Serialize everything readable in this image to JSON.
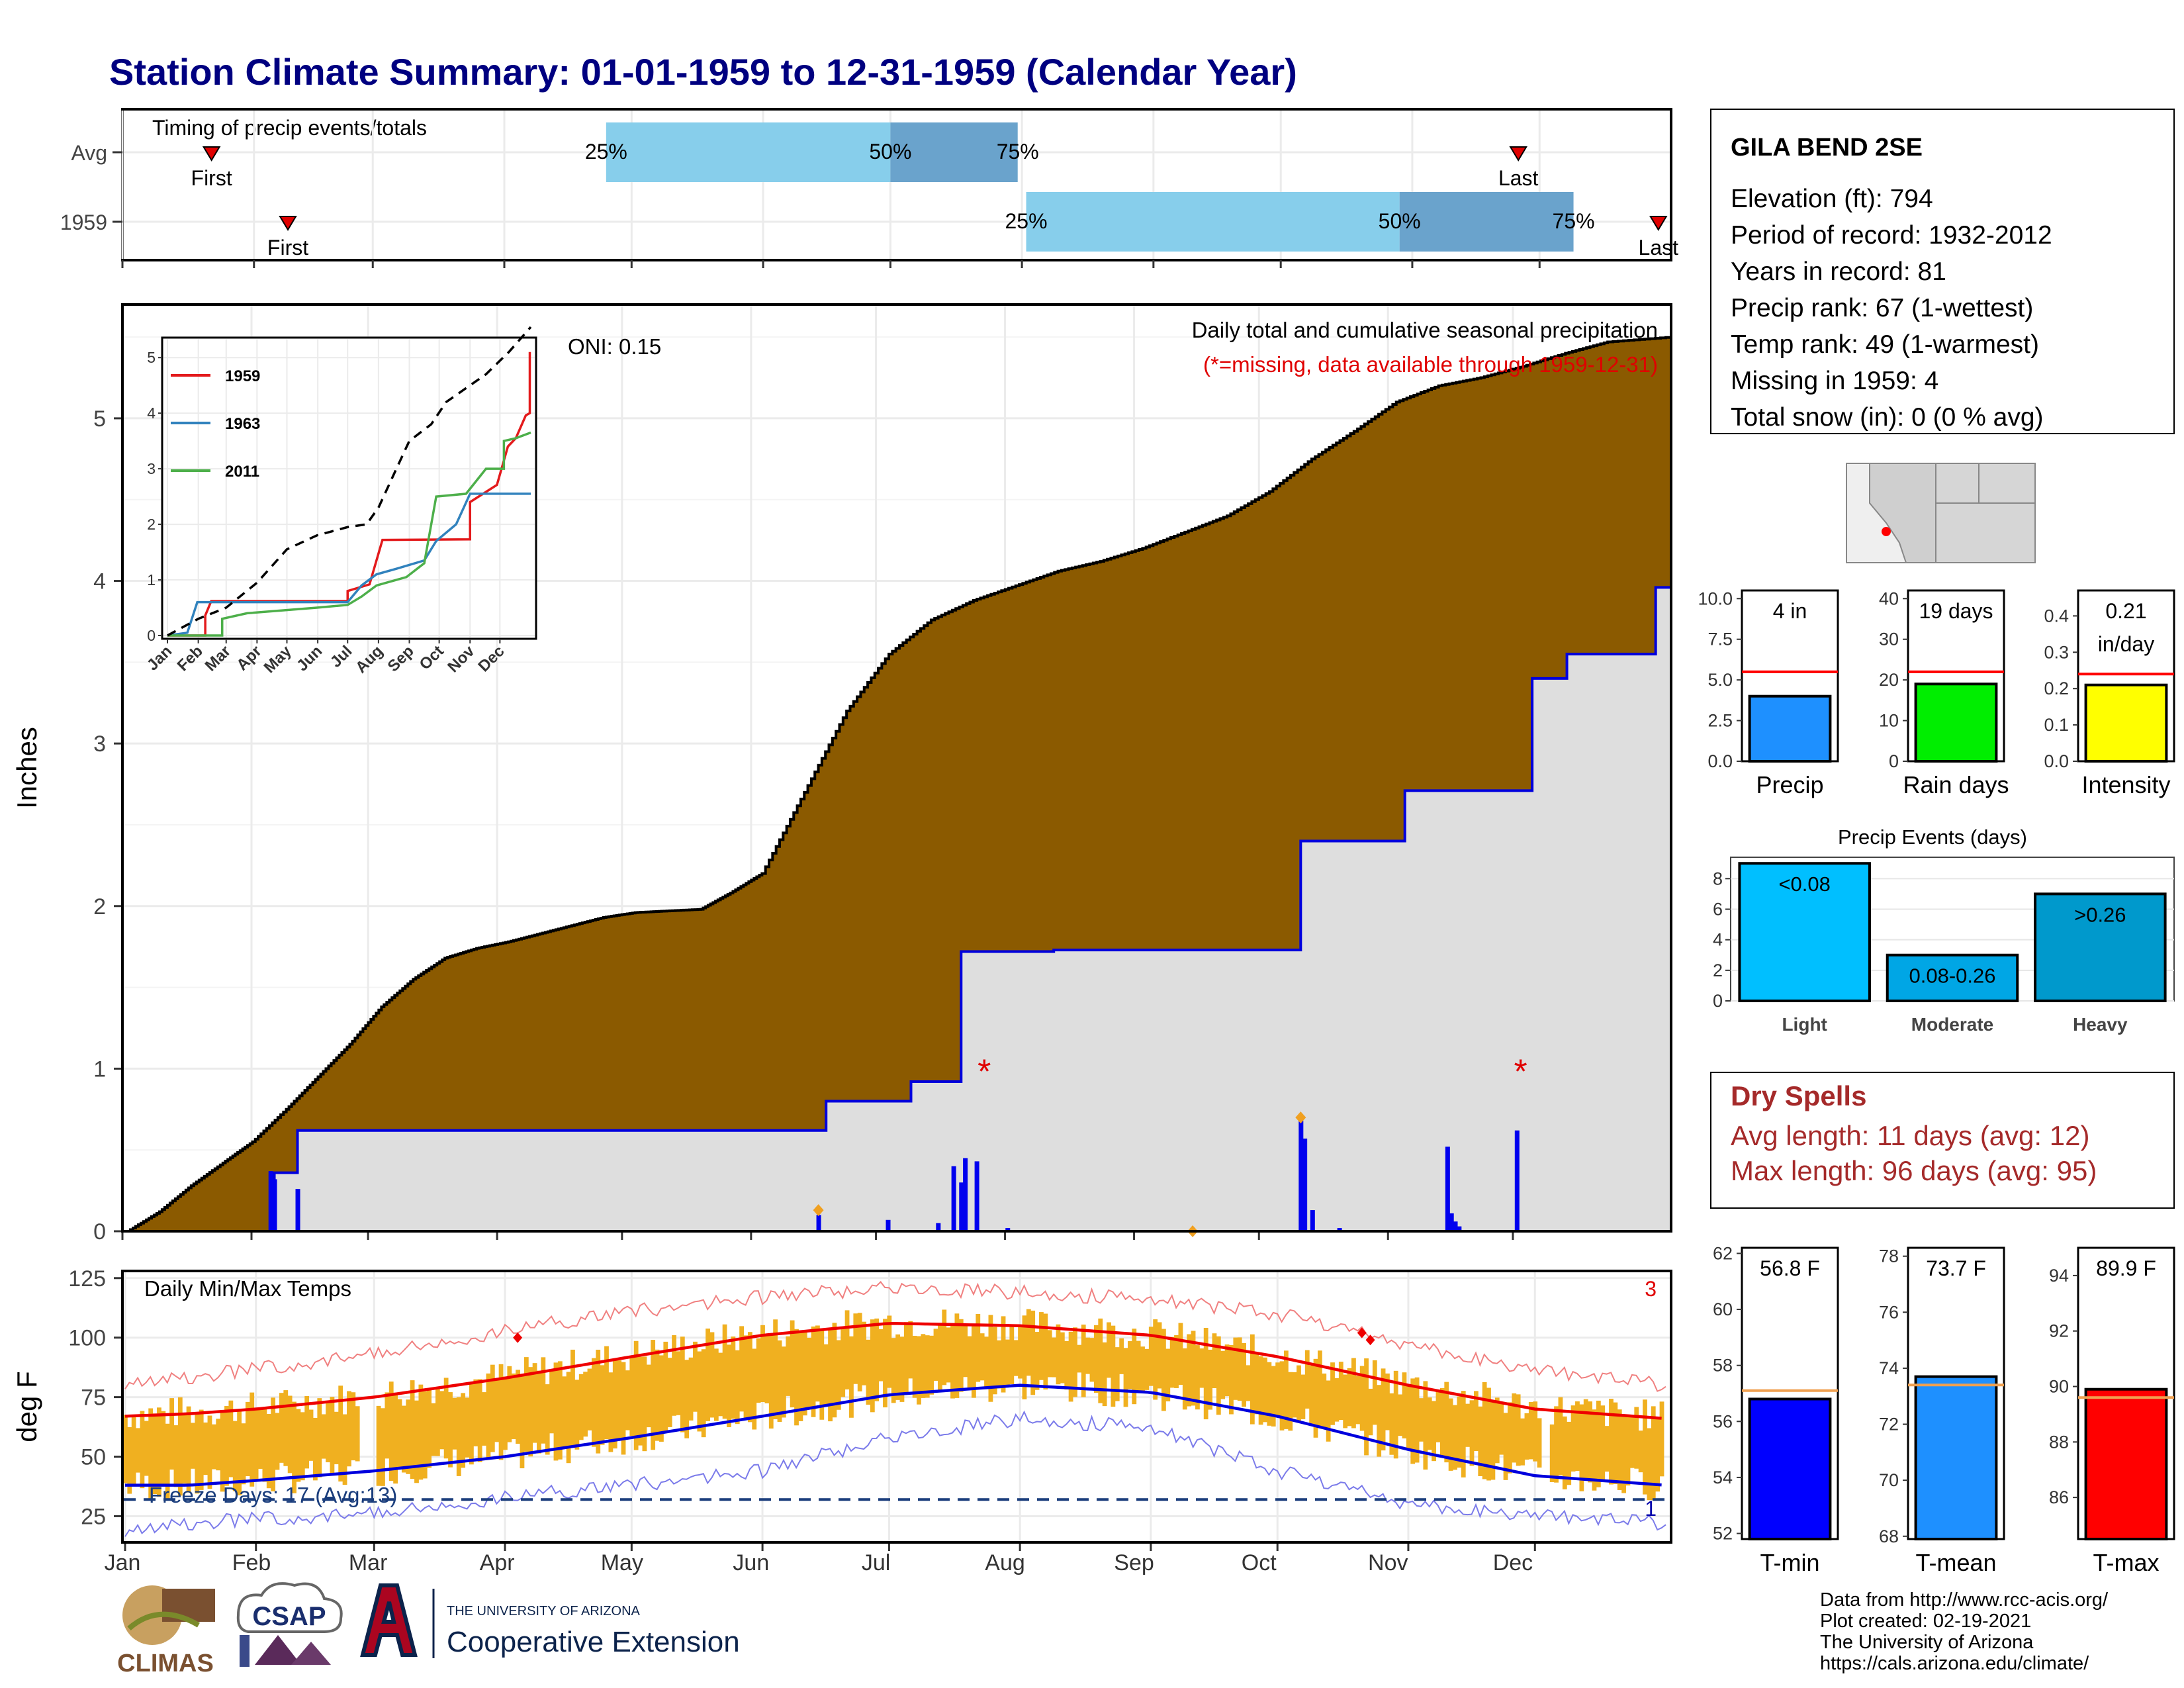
{
  "title": "Station Climate Summary: 01-01-1959 to 12-31-1959 (Calendar Year)",
  "chart_data": [
    {
      "type": "bar",
      "panel": "timing",
      "title": "Timing of precip events/totals",
      "categories": [
        "Avg",
        "1959"
      ],
      "rows": [
        {
          "label": "Avg",
          "first": "Jan 22",
          "pct25": "Apr 25",
          "pct50": "Jul 1",
          "pct75": "Jul 31",
          "last": "Nov 26"
        },
        {
          "label": "1959",
          "first": "Feb 9",
          "pct25": "Aug 2",
          "pct50": "Oct 29",
          "pct75": "Dec 9",
          "last": "Dec 29"
        }
      ],
      "labels": {
        "first": "First",
        "last": "Last",
        "p25": "25%",
        "p50": "50%",
        "p75": "75%"
      }
    },
    {
      "type": "area",
      "panel": "precip",
      "title": "Daily total and cumulative seasonal precipitation",
      "subtitle": "(*=missing, data available through 1959-12-31)",
      "oni": "ONI: 0.15",
      "ylabel": "Inches",
      "ylim": [
        0,
        5.7
      ],
      "yticks": [
        0,
        1,
        2,
        3,
        4,
        5
      ],
      "avg_cumulative": [
        [
          0,
          0
        ],
        [
          15,
          0.12
        ],
        [
          30,
          0.28
        ],
        [
          45,
          0.42
        ],
        [
          59,
          0.55
        ],
        [
          75,
          0.75
        ],
        [
          90,
          0.95
        ],
        [
          105,
          1.15
        ],
        [
          120,
          1.38
        ],
        [
          135,
          1.55
        ],
        [
          150,
          1.68
        ],
        [
          165,
          1.74
        ],
        [
          180,
          1.78
        ],
        [
          195,
          1.83
        ],
        [
          210,
          1.88
        ],
        [
          225,
          1.93
        ],
        [
          240,
          1.96
        ],
        [
          255,
          1.97
        ],
        [
          271,
          1.98
        ],
        [
          285,
          2.08
        ],
        [
          300,
          2.2
        ],
        [
          320,
          2.7
        ],
        [
          340,
          3.2
        ],
        [
          360,
          3.55
        ],
        [
          380,
          3.76
        ],
        [
          400,
          3.88
        ],
        [
          420,
          3.97
        ],
        [
          440,
          4.06
        ],
        [
          460,
          4.12
        ],
        [
          480,
          4.2
        ],
        [
          500,
          4.3
        ],
        [
          520,
          4.4
        ],
        [
          540,
          4.55
        ],
        [
          560,
          4.75
        ],
        [
          580,
          4.92
        ],
        [
          600,
          5.1
        ],
        [
          620,
          5.2
        ],
        [
          640,
          5.25
        ],
        [
          660,
          5.32
        ],
        [
          680,
          5.4
        ],
        [
          700,
          5.47
        ],
        [
          730,
          5.5
        ]
      ],
      "cumulative_1959": [
        [
          0,
          0
        ],
        [
          38,
          0
        ],
        [
          38,
          0.36
        ],
        [
          44,
          0.36
        ],
        [
          44,
          0.62
        ],
        [
          181,
          0.62
        ],
        [
          181,
          0.8
        ],
        [
          203,
          0.8
        ],
        [
          203,
          0.92
        ],
        [
          216,
          0.92
        ],
        [
          216,
          1.72
        ],
        [
          240,
          1.72
        ],
        [
          240,
          1.73
        ],
        [
          304,
          1.73
        ],
        [
          304,
          2.4
        ],
        [
          331,
          2.4
        ],
        [
          331,
          2.71
        ],
        [
          364,
          2.71
        ],
        [
          364,
          3.4
        ],
        [
          373,
          3.4
        ],
        [
          373,
          3.55
        ],
        [
          396,
          3.55
        ],
        [
          396,
          3.96
        ],
        [
          400,
          3.96
        ]
      ],
      "daily_bars": [
        [
          37,
          0.37
        ],
        [
          38,
          0.32
        ],
        [
          44,
          0.26
        ],
        [
          179,
          0.1
        ],
        [
          197,
          0.07
        ],
        [
          210,
          0.05
        ],
        [
          214,
          0.4
        ],
        [
          216,
          0.3
        ],
        [
          217,
          0.45
        ],
        [
          220,
          0.43
        ],
        [
          228,
          0.02
        ],
        [
          276,
          0.01
        ],
        [
          304,
          0.68
        ],
        [
          305,
          0.57
        ],
        [
          307,
          0.13
        ],
        [
          314,
          0.02
        ],
        [
          342,
          0.52
        ],
        [
          343,
          0.11
        ],
        [
          344,
          0.06
        ],
        [
          345,
          0.03
        ],
        [
          360,
          0.62
        ]
      ],
      "missing_marks": [
        [
          222,
          1.0
        ],
        [
          361,
          1.0
        ]
      ],
      "x_month_ticks": [
        "Jan",
        "Feb",
        "Mar",
        "Apr",
        "May",
        "Jun",
        "Jul",
        "Aug",
        "Sep",
        "Oct",
        "Nov",
        "Dec"
      ]
    },
    {
      "type": "line",
      "panel": "inset",
      "series": [
        {
          "name": "1959",
          "color": "#e31a1c",
          "points": [
            [
              0,
              0
            ],
            [
              38,
              0
            ],
            [
              38,
              0.36
            ],
            [
              44,
              0.62
            ],
            [
              181,
              0.62
            ],
            [
              181,
              0.8
            ],
            [
              203,
              0.92
            ],
            [
              216,
              1.72
            ],
            [
              304,
              1.73
            ],
            [
              304,
              2.4
            ],
            [
              331,
              2.71
            ],
            [
              342,
              3.4
            ],
            [
              350,
              3.55
            ],
            [
              360,
              3.96
            ],
            [
              364,
              4.0
            ],
            [
              364,
              5.1
            ]
          ]
        },
        {
          "name": "1963",
          "color": "#3182bd",
          "points": [
            [
              0,
              0
            ],
            [
              20,
              0.05
            ],
            [
              30,
              0.6
            ],
            [
              181,
              0.6
            ],
            [
              195,
              0.9
            ],
            [
              210,
              1.1
            ],
            [
              230,
              1.2
            ],
            [
              258,
              1.35
            ],
            [
              270,
              1.7
            ],
            [
              290,
              2.0
            ],
            [
              304,
              2.55
            ],
            [
              365,
              2.55
            ]
          ]
        },
        {
          "name": "2011",
          "color": "#4daf4a",
          "points": [
            [
              0,
              0
            ],
            [
              55,
              0
            ],
            [
              55,
              0.3
            ],
            [
              80,
              0.4
            ],
            [
              150,
              0.5
            ],
            [
              181,
              0.55
            ],
            [
              195,
              0.7
            ],
            [
              210,
              0.9
            ],
            [
              240,
              1.05
            ],
            [
              258,
              1.3
            ],
            [
              270,
              2.5
            ],
            [
              300,
              2.55
            ],
            [
              320,
              3.0
            ],
            [
              338,
              3.0
            ],
            [
              338,
              3.5
            ],
            [
              350,
              3.55
            ],
            [
              365,
              3.65
            ]
          ]
        },
        {
          "name": "avg",
          "color": "#000000",
          "points": [
            [
              0,
              0
            ],
            [
              31,
              0.3
            ],
            [
              59,
              0.5
            ],
            [
              90,
              0.95
            ],
            [
              120,
              1.55
            ],
            [
              150,
              1.8
            ],
            [
              181,
              1.95
            ],
            [
              200,
              2.0
            ],
            [
              212,
              2.3
            ],
            [
              230,
              3.0
            ],
            [
              243,
              3.5
            ],
            [
              265,
              3.8
            ],
            [
              280,
              4.2
            ],
            [
              300,
              4.45
            ],
            [
              320,
              4.7
            ],
            [
              343,
              5.1
            ],
            [
              365,
              5.55
            ]
          ]
        }
      ],
      "ylim": [
        0,
        5.3
      ],
      "yticks": [
        0,
        1,
        2,
        3,
        4,
        5
      ],
      "xticks": [
        "Jan",
        "Feb",
        "Mar",
        "Apr",
        "May",
        "Jun",
        "Jul",
        "Aug",
        "Sep",
        "Oct",
        "Nov",
        "Dec"
      ]
    },
    {
      "type": "bar",
      "panel": "temps",
      "title": "Daily Min/Max Temps",
      "ylabel": "deg F",
      "ylim": [
        14,
        128
      ],
      "yticks": [
        25,
        50,
        75,
        100,
        125
      ],
      "freeze_label": "Freeze Days: 17 (Avg:13)",
      "freeze_line": 32,
      "record_high_count": "3",
      "record_low_count": "1",
      "avg_max": [
        [
          0,
          67
        ],
        [
          15,
          68
        ],
        [
          31,
          70
        ],
        [
          59,
          75
        ],
        [
          90,
          83
        ],
        [
          120,
          92
        ],
        [
          151,
          101
        ],
        [
          181,
          106
        ],
        [
          212,
          105
        ],
        [
          243,
          101
        ],
        [
          273,
          92
        ],
        [
          304,
          80
        ],
        [
          334,
          70
        ],
        [
          365,
          66
        ]
      ],
      "avg_min": [
        [
          0,
          38
        ],
        [
          15,
          38
        ],
        [
          31,
          40
        ],
        [
          59,
          44
        ],
        [
          90,
          50
        ],
        [
          120,
          58
        ],
        [
          151,
          67
        ],
        [
          181,
          76
        ],
        [
          212,
          80
        ],
        [
          243,
          77
        ],
        [
          273,
          67
        ],
        [
          304,
          53
        ],
        [
          334,
          42
        ],
        [
          365,
          38
        ]
      ],
      "record_max": [
        [
          0,
          80
        ],
        [
          31,
          87
        ],
        [
          59,
          93
        ],
        [
          90,
          103
        ],
        [
          120,
          111
        ],
        [
          151,
          117
        ],
        [
          181,
          121
        ],
        [
          212,
          119
        ],
        [
          243,
          116
        ],
        [
          273,
          110
        ],
        [
          304,
          97
        ],
        [
          334,
          86
        ],
        [
          365,
          80
        ]
      ],
      "record_min": [
        [
          0,
          18
        ],
        [
          15,
          22
        ],
        [
          31,
          24
        ],
        [
          59,
          26
        ],
        [
          90,
          33
        ],
        [
          120,
          38
        ],
        [
          151,
          44
        ],
        [
          181,
          58
        ],
        [
          212,
          66
        ],
        [
          243,
          62
        ],
        [
          273,
          44
        ],
        [
          304,
          30
        ],
        [
          334,
          25
        ],
        [
          365,
          22
        ]
      ],
      "record_high_marks": [
        [
          93,
          100
        ],
        [
          293,
          102
        ],
        [
          295,
          99
        ]
      ],
      "x_month_ticks": [
        "Jan",
        "Feb",
        "Mar",
        "Apr",
        "May",
        "Jun",
        "Jul",
        "Aug",
        "Sep",
        "Oct",
        "Nov",
        "Dec"
      ]
    },
    {
      "type": "bar",
      "panel": "precip-compare",
      "categories": [
        "Precip"
      ],
      "value": 4,
      "avg": 5.5,
      "label": "4 in",
      "ylim": [
        0,
        10.5
      ],
      "yticks": [
        "0.0",
        "2.5",
        "5.0",
        "7.5",
        "10.0"
      ],
      "color": "#1e90ff"
    },
    {
      "type": "bar",
      "panel": "raindays-compare",
      "categories": [
        "Rain days"
      ],
      "value": 19,
      "avg": 22,
      "label": "19 days",
      "ylim": [
        0,
        42
      ],
      "yticks": [
        "0",
        "10",
        "20",
        "30",
        "40"
      ],
      "color": "#00ee00"
    },
    {
      "type": "bar",
      "panel": "intensity-compare",
      "categories": [
        "Intensity"
      ],
      "value": 0.21,
      "avg": 0.24,
      "label": "0.21",
      "label2": "in/day",
      "ylim": [
        0,
        0.47
      ],
      "yticks": [
        "0.0",
        "0.1",
        "0.2",
        "0.3",
        "0.4"
      ],
      "color": "#ffff00"
    },
    {
      "type": "bar",
      "panel": "events",
      "title": "Precip Events (days)",
      "categories": [
        "Light",
        "Moderate",
        "Heavy"
      ],
      "values": [
        9,
        3,
        7
      ],
      "bar_labels": [
        "<0.08",
        "0.08-0.26",
        ">0.26"
      ],
      "colors": [
        "#00bfff",
        "#00a6e5",
        "#0099cc"
      ],
      "ylim": [
        0,
        9.4
      ],
      "yticks": [
        "0",
        "2",
        "4",
        "6",
        "8"
      ]
    },
    {
      "type": "bar",
      "panel": "tmin",
      "categories": [
        "T-min"
      ],
      "value": 56.8,
      "avg": 57.1,
      "label": "56.8 F",
      "ylim": [
        51.8,
        62.2
      ],
      "yticks": [
        "52",
        "54",
        "56",
        "58",
        "60",
        "62"
      ],
      "color": "#0000ff"
    },
    {
      "type": "bar",
      "panel": "tmean",
      "categories": [
        "T-mean"
      ],
      "value": 73.7,
      "avg": 73.4,
      "label": "73.7 F",
      "ylim": [
        67.9,
        78.3
      ],
      "yticks": [
        "68",
        "70",
        "72",
        "74",
        "76",
        "78"
      ],
      "color": "#1e90ff"
    },
    {
      "type": "bar",
      "panel": "tmax",
      "categories": [
        "T-max"
      ],
      "value": 89.9,
      "avg": 89.6,
      "label": "89.9 F",
      "ylim": [
        84.5,
        95.0
      ],
      "yticks": [
        "86",
        "88",
        "90",
        "92",
        "94"
      ],
      "color": "#ff0000"
    }
  ],
  "station": {
    "name": "GILA BEND 2SE",
    "lines": [
      "Elevation (ft): 794",
      "Period of record: 1932-2012",
      "Years in record: 81",
      "Precip rank: 67 (1-wettest)",
      "Temp rank: 49 (1-warmest)",
      "Missing in 1959: 4",
      "Total snow (in): 0 (0 % avg)"
    ]
  },
  "dry_spells": {
    "title": "Dry Spells",
    "avg": "Avg length: 11 days (avg: 12)",
    "max": "Max length: 96 days (avg: 95)"
  },
  "credits": [
    "Data from http://www.rcc-acis.org/",
    "Plot created: 02-19-2021",
    "The University of Arizona",
    "https://cals.arizona.edu/climate/"
  ],
  "logos": {
    "climas": "CLIMAS",
    "csap": "CSAP",
    "ua_small": "THE UNIVERSITY OF ARIZONA",
    "ua_big": "Cooperative Extension"
  },
  "colors": {
    "navy": "#000080",
    "brown": "#8b5a00",
    "gold": "#f0b020",
    "light_blue": "#87ceeb",
    "mid_blue": "#6aa3cc",
    "dry_red": "#a52a2a"
  }
}
